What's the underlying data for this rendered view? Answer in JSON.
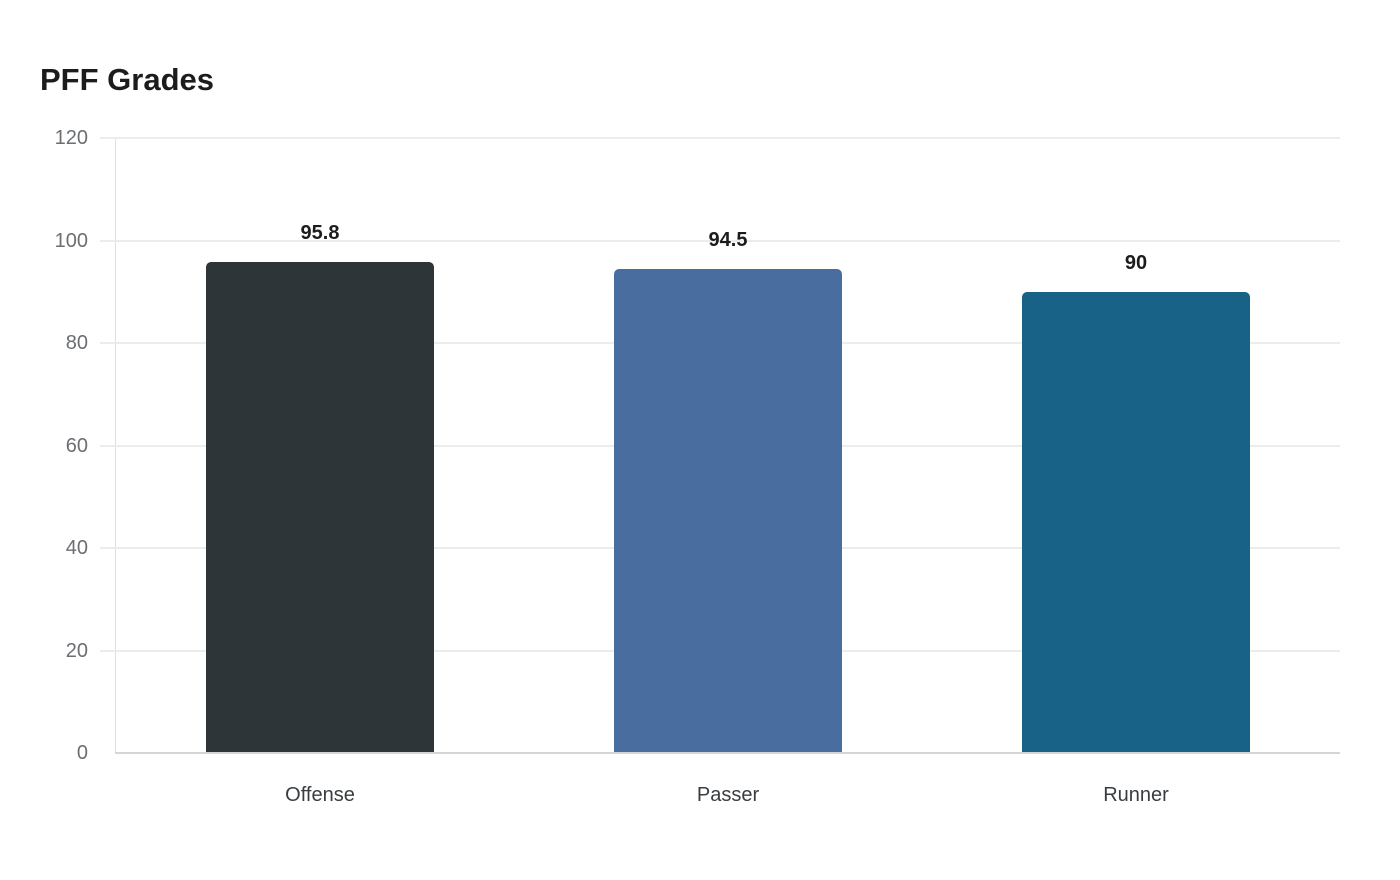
{
  "chart_data": {
    "type": "bar",
    "title": "PFF Grades",
    "xlabel": "",
    "ylabel": "",
    "categories": [
      "Offense",
      "Passer",
      "Runner"
    ],
    "values": [
      95.8,
      94.5,
      90
    ],
    "value_labels": [
      "95.8",
      "94.5",
      "90"
    ],
    "colors": [
      "#2e3538",
      "#4a6d9f",
      "#186187"
    ],
    "ylim": [
      0,
      120
    ],
    "yticks": [
      "0",
      "20",
      "40",
      "60",
      "80",
      "100",
      "120"
    ],
    "grid": true,
    "legend": "none"
  }
}
